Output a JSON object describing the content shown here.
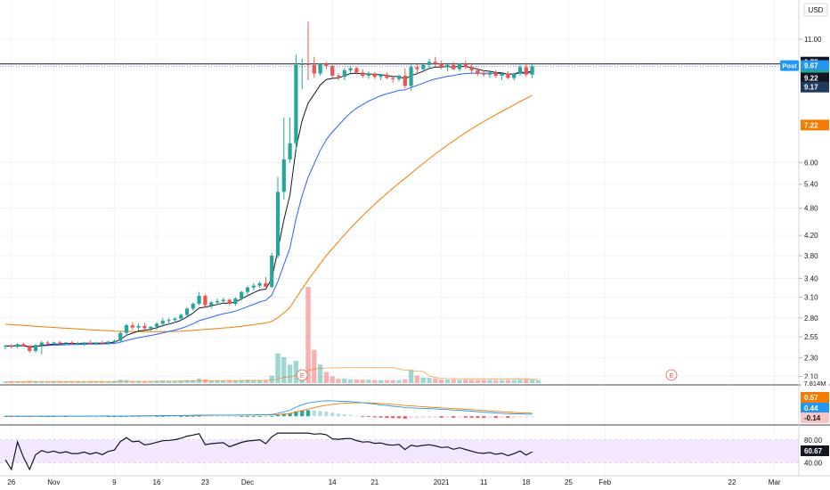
{
  "chart_data": {
    "type": "candlestick",
    "currency_label": "USD",
    "up_color": "#26a69a",
    "down_color": "#ef5350",
    "bg_color": "#ffffff",
    "ma_colors": {
      "ma_fast": "#131722",
      "ma_mid": "#2962ff",
      "ma_slow": "#f57c00"
    },
    "y_axis": {
      "scale": "log",
      "range": [
        2.05,
        13.0
      ],
      "tick_labels": [
        "11.00",
        "6.00",
        "5.40",
        "4.80",
        "4.20",
        "3.80",
        "3.40",
        "3.10",
        "2.80",
        "2.55",
        "2.30",
        "2.10"
      ],
      "tick_values": [
        11.0,
        6.0,
        5.4,
        4.8,
        4.2,
        3.8,
        3.4,
        3.1,
        2.8,
        2.55,
        2.3,
        2.1
      ]
    },
    "x_axis": {
      "tick_labels": [
        "26",
        "Nov",
        "9",
        "16",
        "23",
        "Dec",
        "14",
        "21",
        "2021",
        "11",
        "18",
        "25",
        "Feb",
        "22",
        "Mar"
      ],
      "tick_bars": [
        1,
        8,
        18,
        25,
        33,
        40,
        54,
        61,
        72,
        79,
        86,
        93,
        99,
        120,
        127
      ]
    },
    "price_labels": [
      {
        "text": "9.75",
        "value": 9.75,
        "color": "#131722"
      },
      {
        "text": "Post",
        "value": 9.67,
        "color": "#2196f3"
      },
      {
        "text": "9.67",
        "value": 9.67,
        "color": "#2196f3"
      },
      {
        "text": "9.64",
        "value": 9.64,
        "color": "#26a69a"
      },
      {
        "text": "9.22",
        "value": 9.22,
        "color": "#131722"
      },
      {
        "text": "9.17",
        "value": 9.17,
        "color": "#1e3a5f"
      },
      {
        "text": "7.22",
        "value": 7.22,
        "color": "#f57c00"
      }
    ],
    "horizontal_line": 9.75,
    "earnings_markers": {
      "label": "E",
      "bars": [
        49,
        110
      ]
    },
    "volume_label": "7.814M",
    "candles": [
      [
        2.43,
        2.45,
        2.4,
        2.44
      ],
      [
        2.44,
        2.46,
        2.41,
        2.43
      ],
      [
        2.43,
        2.47,
        2.41,
        2.46
      ],
      [
        2.46,
        2.48,
        2.43,
        2.44
      ],
      [
        2.44,
        2.45,
        2.36,
        2.38
      ],
      [
        2.38,
        2.46,
        2.36,
        2.45
      ],
      [
        2.45,
        2.5,
        2.34,
        2.48
      ],
      [
        2.48,
        2.5,
        2.46,
        2.47
      ],
      [
        2.47,
        2.49,
        2.45,
        2.48
      ],
      [
        2.48,
        2.5,
        2.46,
        2.47
      ],
      [
        2.47,
        2.49,
        2.45,
        2.48
      ],
      [
        2.48,
        2.5,
        2.46,
        2.47
      ],
      [
        2.47,
        2.49,
        2.45,
        2.47
      ],
      [
        2.47,
        2.49,
        2.44,
        2.48
      ],
      [
        2.48,
        2.51,
        2.46,
        2.47
      ],
      [
        2.47,
        2.49,
        2.45,
        2.48
      ],
      [
        2.48,
        2.5,
        2.46,
        2.47
      ],
      [
        2.47,
        2.5,
        2.45,
        2.49
      ],
      [
        2.49,
        2.52,
        2.47,
        2.5
      ],
      [
        2.5,
        2.62,
        2.48,
        2.6
      ],
      [
        2.6,
        2.72,
        2.56,
        2.7
      ],
      [
        2.7,
        2.74,
        2.64,
        2.67
      ],
      [
        2.67,
        2.72,
        2.63,
        2.69
      ],
      [
        2.69,
        2.73,
        2.64,
        2.66
      ],
      [
        2.66,
        2.69,
        2.61,
        2.68
      ],
      [
        2.68,
        2.74,
        2.64,
        2.72
      ],
      [
        2.72,
        2.8,
        2.68,
        2.76
      ],
      [
        2.76,
        2.8,
        2.71,
        2.77
      ],
      [
        2.77,
        2.81,
        2.73,
        2.79
      ],
      [
        2.79,
        2.86,
        2.76,
        2.84
      ],
      [
        2.84,
        2.95,
        2.82,
        2.93
      ],
      [
        2.93,
        3.02,
        2.9,
        3.0
      ],
      [
        3.0,
        3.18,
        2.98,
        3.12
      ],
      [
        3.12,
        3.15,
        2.95,
        2.98
      ],
      [
        2.98,
        3.04,
        2.93,
        3.02
      ],
      [
        3.02,
        3.08,
        2.98,
        3.04
      ],
      [
        3.04,
        3.09,
        3.0,
        3.06
      ],
      [
        3.06,
        3.08,
        2.98,
        3.0
      ],
      [
        3.0,
        3.1,
        2.97,
        3.08
      ],
      [
        3.08,
        3.2,
        3.05,
        3.18
      ],
      [
        3.18,
        3.28,
        3.12,
        3.25
      ],
      [
        3.25,
        3.32,
        3.2,
        3.28
      ],
      [
        3.28,
        3.35,
        3.24,
        3.32
      ],
      [
        3.32,
        3.42,
        3.3,
        3.26
      ],
      [
        3.26,
        3.85,
        3.24,
        3.8
      ],
      [
        3.8,
        5.6,
        3.75,
        5.2
      ],
      [
        5.2,
        7.5,
        5.0,
        6.1
      ],
      [
        6.1,
        7.5,
        6.0,
        6.6
      ],
      [
        6.6,
        10.2,
        6.4,
        9.7
      ],
      [
        9.7,
        10.0,
        8.6,
        9.75
      ],
      [
        9.75,
        12.0,
        9.0,
        9.7
      ],
      [
        9.7,
        10.1,
        9.1,
        9.3
      ],
      [
        9.3,
        9.8,
        9.2,
        9.75
      ],
      [
        9.75,
        9.85,
        9.5,
        9.65
      ],
      [
        9.65,
        9.7,
        9.1,
        9.2
      ],
      [
        9.2,
        9.3,
        9.0,
        9.15
      ],
      [
        9.15,
        9.55,
        9.0,
        9.45
      ],
      [
        9.45,
        9.65,
        9.25,
        9.55
      ],
      [
        9.55,
        9.6,
        9.25,
        9.35
      ],
      [
        9.35,
        9.5,
        9.1,
        9.2
      ],
      [
        9.2,
        9.4,
        9.05,
        9.3
      ],
      [
        9.3,
        9.35,
        9.05,
        9.15
      ],
      [
        9.15,
        9.3,
        9.0,
        9.25
      ],
      [
        9.25,
        9.35,
        9.05,
        9.1
      ],
      [
        9.1,
        9.2,
        8.9,
        9.05
      ],
      [
        9.05,
        9.25,
        8.95,
        9.2
      ],
      [
        9.2,
        9.55,
        8.65,
        8.75
      ],
      [
        8.75,
        9.7,
        8.55,
        9.6
      ],
      [
        9.6,
        9.75,
        9.3,
        9.5
      ],
      [
        9.5,
        9.8,
        9.4,
        9.7
      ],
      [
        9.7,
        10.0,
        9.55,
        9.85
      ],
      [
        9.85,
        10.1,
        9.6,
        9.75
      ],
      [
        9.75,
        9.9,
        9.5,
        9.6
      ],
      [
        9.6,
        9.8,
        9.4,
        9.7
      ],
      [
        9.7,
        9.85,
        9.45,
        9.5
      ],
      [
        9.5,
        9.8,
        9.4,
        9.75
      ],
      [
        9.75,
        9.9,
        9.5,
        9.6
      ],
      [
        9.6,
        9.8,
        9.3,
        9.45
      ],
      [
        9.45,
        9.55,
        9.2,
        9.3
      ],
      [
        9.3,
        9.45,
        9.15,
        9.25
      ],
      [
        9.25,
        9.4,
        9.1,
        9.35
      ],
      [
        9.35,
        9.45,
        9.1,
        9.2
      ],
      [
        9.2,
        9.35,
        9.0,
        9.3
      ],
      [
        9.3,
        9.4,
        9.05,
        9.1
      ],
      [
        9.1,
        9.35,
        9.0,
        9.3
      ],
      [
        9.3,
        9.7,
        9.2,
        9.6
      ],
      [
        9.6,
        9.8,
        9.15,
        9.25
      ],
      [
        9.25,
        9.75,
        9.1,
        9.64
      ]
    ],
    "volume": [
      0.04,
      0.04,
      0.04,
      0.04,
      0.06,
      0.05,
      0.05,
      0.04,
      0.04,
      0.04,
      0.04,
      0.04,
      0.04,
      0.04,
      0.04,
      0.04,
      0.04,
      0.04,
      0.05,
      0.09,
      0.08,
      0.05,
      0.05,
      0.05,
      0.05,
      0.06,
      0.07,
      0.06,
      0.06,
      0.07,
      0.08,
      0.08,
      0.12,
      0.1,
      0.07,
      0.07,
      0.06,
      0.06,
      0.07,
      0.08,
      0.09,
      0.08,
      0.08,
      0.08,
      0.2,
      0.8,
      0.7,
      0.5,
      0.6,
      0.3,
      2.6,
      0.9,
      0.5,
      0.3,
      0.18,
      0.12,
      0.12,
      0.1,
      0.1,
      0.09,
      0.09,
      0.08,
      0.08,
      0.08,
      0.08,
      0.08,
      0.1,
      0.35,
      0.2,
      0.15,
      0.14,
      0.13,
      0.1,
      0.1,
      0.1,
      0.09,
      0.09,
      0.09,
      0.08,
      0.08,
      0.08,
      0.08,
      0.08,
      0.08,
      0.08,
      0.09,
      0.1,
      0.09,
      0.08
    ],
    "macd_pane": {
      "labels": [
        {
          "text": "0.57",
          "value": 0.57,
          "color": "#f57c00"
        },
        {
          "text": "0.44",
          "value": 0.44,
          "color": "#2196f3"
        },
        {
          "text": "-0.14",
          "value": -0.14,
          "color": "#f8c4c2"
        }
      ],
      "range": [
        -0.25,
        1.15
      ]
    },
    "rsi_pane": {
      "tick_labels": [
        "80.00",
        "40.00"
      ],
      "tick_values": [
        80,
        40
      ],
      "value_label": "60.67",
      "range": [
        20,
        100
      ],
      "band": [
        30,
        70
      ],
      "band_color": "#f3e8ff"
    }
  }
}
